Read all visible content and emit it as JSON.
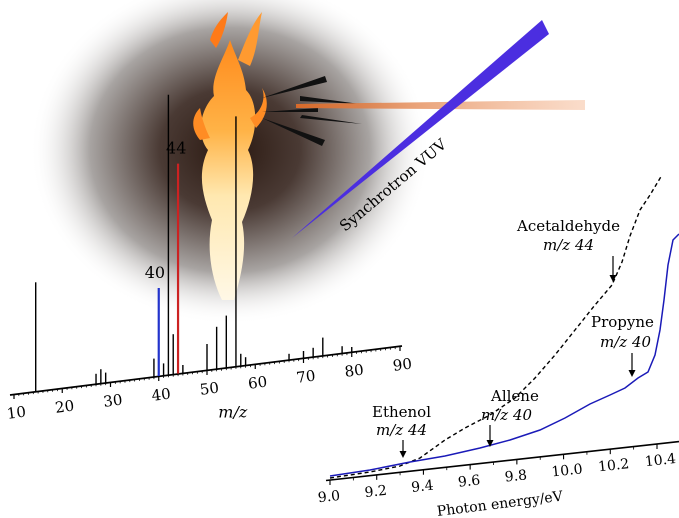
{
  "mass_spectrum": {
    "axis_label": "m/z",
    "axis_ticks": [
      "10",
      "20",
      "30",
      "40",
      "50",
      "60",
      "70",
      "80",
      "90"
    ],
    "peak_labels": [
      {
        "text": "40",
        "color": "#2233cc"
      },
      {
        "text": "44",
        "color": "#cc2222"
      }
    ],
    "peaks": [
      {
        "mz": 14.5,
        "h": 109,
        "color": "#000000"
      },
      {
        "mz": 27,
        "h": 10,
        "color": "#000000"
      },
      {
        "mz": 28,
        "h": 14,
        "color": "#000000"
      },
      {
        "mz": 29,
        "h": 10,
        "color": "#000000"
      },
      {
        "mz": 39,
        "h": 18,
        "color": "#000000"
      },
      {
        "mz": 40,
        "h": 88,
        "color": "#2233cc"
      },
      {
        "mz": 41,
        "h": 12,
        "color": "#000000"
      },
      {
        "mz": 42,
        "h": 280,
        "color": "#000000"
      },
      {
        "mz": 43,
        "h": 40,
        "color": "#000000"
      },
      {
        "mz": 44,
        "h": 210,
        "color": "#cc2222"
      },
      {
        "mz": 45,
        "h": 8,
        "color": "#000000"
      },
      {
        "mz": 50,
        "h": 26,
        "color": "#000000"
      },
      {
        "mz": 52,
        "h": 42,
        "color": "#000000"
      },
      {
        "mz": 54,
        "h": 52,
        "color": "#000000"
      },
      {
        "mz": 56,
        "h": 250,
        "color": "#000000"
      },
      {
        "mz": 57,
        "h": 12,
        "color": "#000000"
      },
      {
        "mz": 58,
        "h": 8,
        "color": "#000000"
      },
      {
        "mz": 67,
        "h": 6,
        "color": "#000000"
      },
      {
        "mz": 70,
        "h": 7,
        "color": "#000000"
      },
      {
        "mz": 72,
        "h": 9,
        "color": "#000000"
      },
      {
        "mz": 74,
        "h": 18,
        "color": "#000000"
      },
      {
        "mz": 78,
        "h": 7,
        "color": "#000000"
      },
      {
        "mz": 80,
        "h": 5,
        "color": "#000000"
      }
    ]
  },
  "beam": {
    "label": "Synchrotron VUV",
    "color": "#4b2ee0"
  },
  "pie_curves": {
    "x_label": "Photon energy/eV",
    "x_ticks": [
      "9.0",
      "9.2",
      "9.4",
      "9.6",
      "9.8",
      "10.0",
      "10.2",
      "10.4"
    ],
    "annotations": [
      {
        "species": "Ethenol",
        "mz": "m/z 44"
      },
      {
        "species": "Allene",
        "mz": "m/z 40"
      },
      {
        "species": "Propyne",
        "mz": "m/z 40"
      },
      {
        "species": "Acetaldehyde",
        "mz": "m/z 44"
      }
    ],
    "mz40_color": "#1a1ab8",
    "mz44_color": "#000000"
  }
}
